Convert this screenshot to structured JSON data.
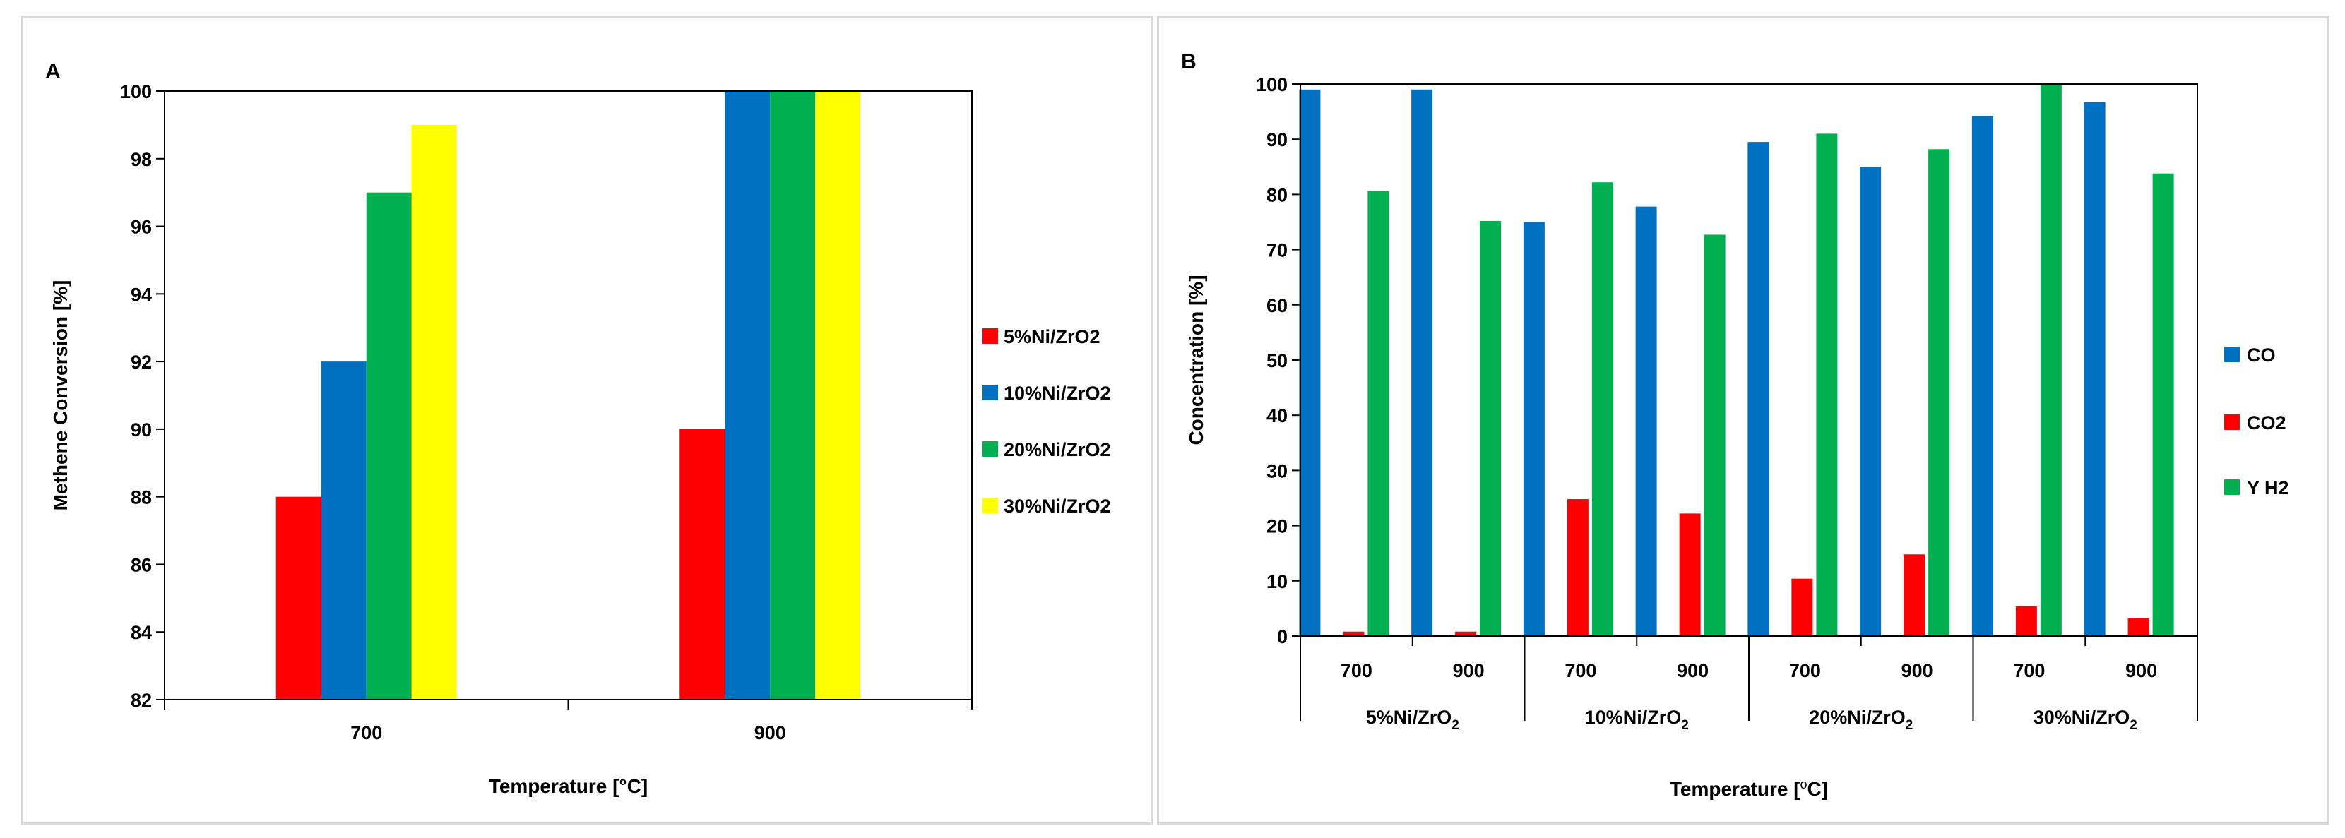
{
  "chart_data": [
    {
      "type": "bar",
      "panel_label": "A",
      "xlabel": "Temperature [°C]",
      "ylabel": "Methene Conversion [%]",
      "ylim": [
        82,
        100
      ],
      "yticks": [
        "82",
        "84",
        "86",
        "88",
        "90",
        "92",
        "94",
        "96",
        "98",
        "100"
      ],
      "categories": [
        "700",
        "900"
      ],
      "series": [
        {
          "name": "5%Ni/ZrO2",
          "color": "#ff0000",
          "values": [
            88,
            90
          ]
        },
        {
          "name": "10%Ni/ZrO2",
          "color": "#0070c0",
          "values": [
            92,
            100
          ]
        },
        {
          "name": "20%Ni/ZrO2",
          "color": "#00b050",
          "values": [
            97,
            100
          ]
        },
        {
          "name": "30%Ni/ZrO2",
          "color": "#ffff00",
          "values": [
            99,
            100
          ]
        }
      ],
      "legend_position": "right"
    },
    {
      "type": "bar",
      "panel_label": "B",
      "xlabel": "Temperature [",
      "xlabel_sup": "o",
      "xlabel_end": "C]",
      "ylabel": "Concentration [%]",
      "ylim": [
        0,
        100
      ],
      "yticks": [
        "0",
        "10",
        "20",
        "30",
        "40",
        "50",
        "60",
        "70",
        "80",
        "90",
        "100"
      ],
      "categories": [
        "700",
        "900",
        "700",
        "900",
        "700",
        "900",
        "700",
        "900"
      ],
      "groups": [
        {
          "prefix": "5%Ni/ZrO",
          "sub": "2"
        },
        {
          "prefix": "10%Ni/ZrO",
          "sub": "2"
        },
        {
          "prefix": "20%Ni/ZrO",
          "sub": "2"
        },
        {
          "prefix": "30%Ni/ZrO",
          "sub": "2"
        }
      ],
      "series": [
        {
          "name": "CO",
          "color": "#0070c0",
          "values": [
            99,
            99,
            75,
            77.8,
            89.5,
            85,
            94.2,
            96.7
          ]
        },
        {
          "name": "CO2",
          "color": "#ff0000",
          "values": [
            0.8,
            0.8,
            24.8,
            22.2,
            10.4,
            14.8,
            5.4,
            3.2
          ]
        },
        {
          "name": "Y H2",
          "color": "#00b050",
          "values": [
            80.6,
            75.2,
            82.2,
            72.7,
            91,
            88.2,
            100,
            83.8
          ]
        }
      ],
      "legend_position": "right"
    }
  ]
}
